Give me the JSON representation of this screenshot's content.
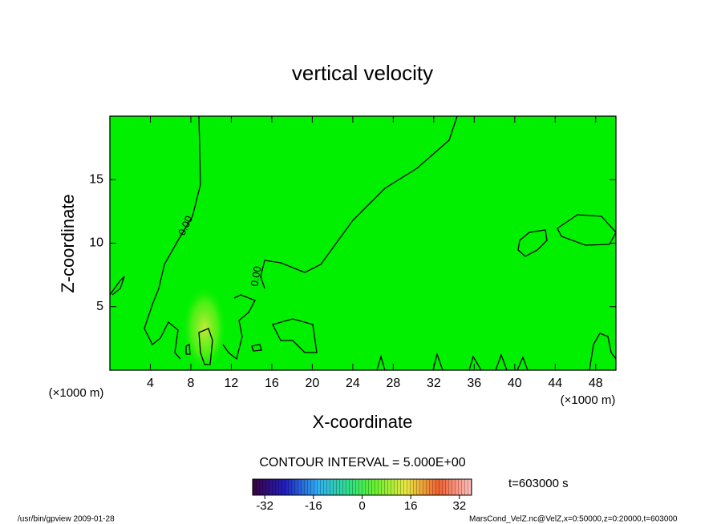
{
  "chart_data": {
    "type": "contour",
    "title": "vertical velocity",
    "x_label": "X-coordinate",
    "y_label": "Z-coordinate",
    "x_unit": "(×1000 m)",
    "y_unit": "(×1000 m)",
    "xlim": [
      0,
      50
    ],
    "xticks": [
      4,
      8,
      12,
      16,
      20,
      24,
      28,
      32,
      36,
      40,
      44,
      48
    ],
    "ylim": [
      0,
      20
    ],
    "yticks": [
      5,
      10,
      15
    ],
    "contour_labels": [
      "0.00",
      "0.00"
    ],
    "contour_interval": "CONTOUR INTERVAL = 5.000E+00",
    "colorbar": {
      "lim": [
        -36,
        36
      ],
      "ticks": [
        -32,
        -16,
        0,
        16,
        32
      ]
    },
    "time_label": "t=603000 s",
    "footer_left": "/usr/bin/gpview  2009-01-28",
    "footer_right": "MarsCond_VelZ.nc@VelZ,x=0:50000,z=0:20000,t=603000"
  }
}
